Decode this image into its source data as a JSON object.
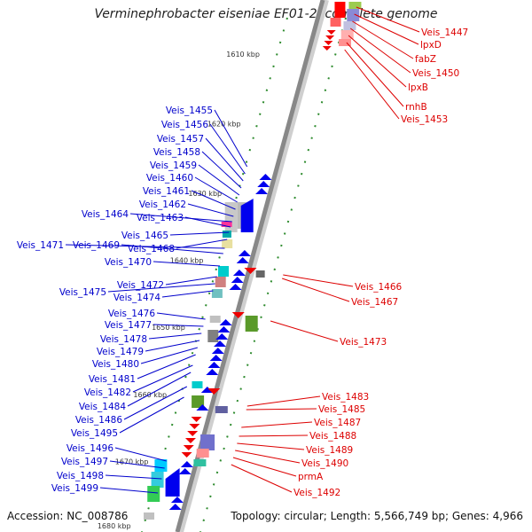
{
  "title": "Verminephrobacter eiseniae EF01-2, complete genome",
  "footer": {
    "accession": "Accession: NC_008786",
    "topology": "Topology: circular; Length: 5,566,749 bp; Genes: 4,966"
  },
  "ticks": [
    {
      "label": "1610 kbp",
      "t": 0.07
    },
    {
      "label": "1620 kbp",
      "t": 0.21
    },
    {
      "label": "1630 kbp",
      "t": 0.35
    },
    {
      "label": "1640 kbp",
      "t": 0.485
    },
    {
      "label": "1650 kbp",
      "t": 0.62
    },
    {
      "label": "1660 kbp",
      "t": 0.755
    },
    {
      "label": "1670 kbp",
      "t": 0.89
    },
    {
      "label": "1680 kbp",
      "t": 1.02
    }
  ],
  "left_genes": [
    "Veis_1455",
    "Veis_1456",
    "Veis_1457",
    "Veis_1458",
    "Veis_1459",
    "Veis_1460",
    "Veis_1461",
    "Veis_1462",
    "Veis_1464",
    "Veis_1463",
    "Veis_1465",
    "Veis_1468",
    "Veis_1471",
    "Veis_1469",
    "Veis_1470",
    "Veis_1472",
    "Veis_1475",
    "Veis_1474",
    "Veis_1476",
    "Veis_1477",
    "Veis_1478",
    "Veis_1479",
    "Veis_1480",
    "Veis_1481",
    "Veis_1482",
    "Veis_1484",
    "Veis_1486",
    "Veis_1495",
    "Veis_1496",
    "Veis_1497",
    "Veis_1498",
    "Veis_1499"
  ],
  "right_genes": [
    "Veis_1447",
    "lpxD",
    "fabZ",
    "Veis_1450",
    "lpxB",
    "rnhB",
    "Veis_1453",
    "Veis_1466",
    "Veis_1467",
    "Veis_1473",
    "Veis_1483",
    "Veis_1485",
    "Veis_1487",
    "Veis_1488",
    "Veis_1489",
    "Veis_1490",
    "prmA",
    "Veis_1492"
  ],
  "colors": {
    "forward_label": "#0000cc",
    "reverse_label": "#dd0000",
    "forward_arrow": "#0000ee",
    "reverse_arrow": "#ee0000",
    "backbone": "#888888",
    "tick_dots": "#2e8b2e"
  }
}
